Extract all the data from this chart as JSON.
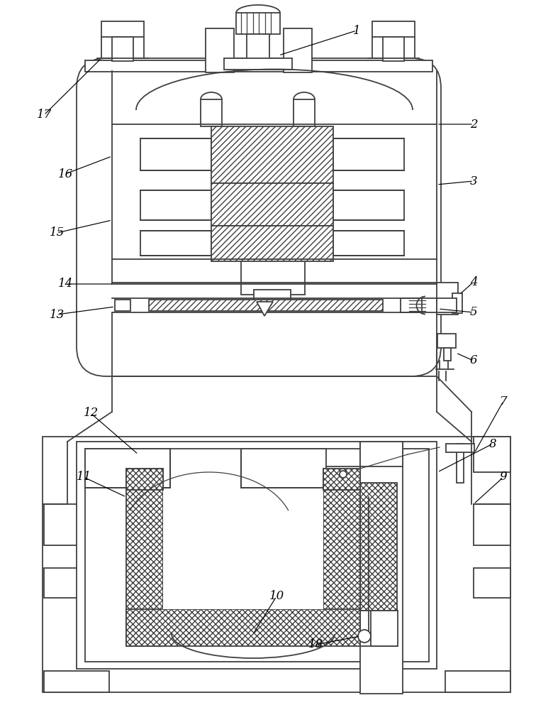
{
  "bg": "#ffffff",
  "lc": "#404040",
  "lw": 1.3,
  "lw_thin": 0.9
}
